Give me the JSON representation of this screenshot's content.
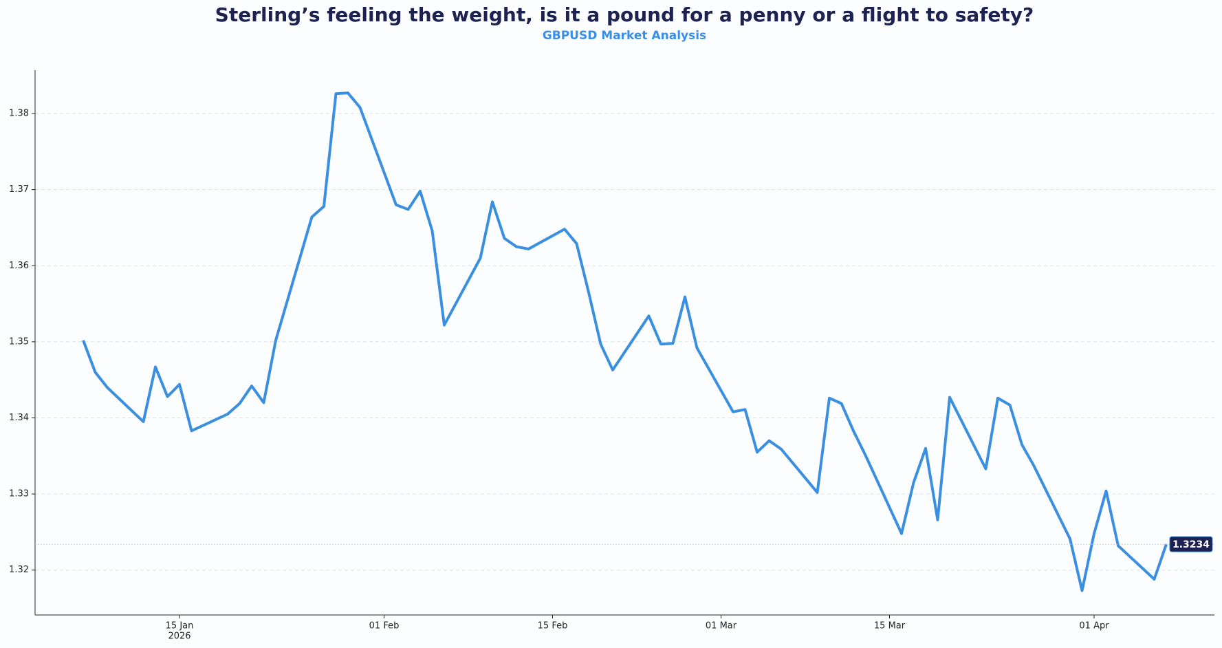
{
  "chart_data": {
    "type": "line",
    "title": "Sterling’s feeling the weight, is it a pound for a penny or a flight to safety?",
    "subtitle": "GBPUSD Market Analysis",
    "x": [
      "2026-01-07",
      "2026-01-08",
      "2026-01-09",
      "2026-01-12",
      "2026-01-13",
      "2026-01-14",
      "2026-01-15",
      "2026-01-16",
      "2026-01-19",
      "2026-01-20",
      "2026-01-21",
      "2026-01-22",
      "2026-01-23",
      "2026-01-26",
      "2026-01-27",
      "2026-01-28",
      "2026-01-29",
      "2026-01-30",
      "2026-02-02",
      "2026-02-03",
      "2026-02-04",
      "2026-02-05",
      "2026-02-06",
      "2026-02-09",
      "2026-02-10",
      "2026-02-11",
      "2026-02-12",
      "2026-02-13",
      "2026-02-16",
      "2026-02-17",
      "2026-02-18",
      "2026-02-19",
      "2026-02-20",
      "2026-02-23",
      "2026-02-24",
      "2026-02-25",
      "2026-02-26",
      "2026-02-27",
      "2026-03-02",
      "2026-03-03",
      "2026-03-04",
      "2026-03-05",
      "2026-03-06",
      "2026-03-09",
      "2026-03-10",
      "2026-03-11",
      "2026-03-12",
      "2026-03-13",
      "2026-03-16",
      "2026-03-17",
      "2026-03-18",
      "2026-03-19",
      "2026-03-20",
      "2026-03-23",
      "2026-03-24",
      "2026-03-25",
      "2026-03-26",
      "2026-03-27",
      "2026-03-30",
      "2026-03-31",
      "2026-04-01",
      "2026-04-02",
      "2026-04-03",
      "2026-04-06",
      "2026-04-07"
    ],
    "series": [
      {
        "name": "GBPUSD",
        "color": "#3a8fe0",
        "values": [
          1.3502,
          1.346,
          1.344,
          1.3395,
          1.3467,
          1.3428,
          1.3444,
          1.3383,
          1.3405,
          1.3419,
          1.3442,
          1.342,
          1.3502,
          1.3664,
          1.3678,
          1.3826,
          1.3827,
          1.3808,
          1.368,
          1.3674,
          1.3698,
          1.3646,
          1.3522,
          1.361,
          1.3684,
          1.3636,
          1.3625,
          1.3622,
          1.3648,
          1.3629,
          1.3565,
          1.3497,
          1.3463,
          1.3534,
          1.3497,
          1.3498,
          1.3559,
          1.3492,
          1.3408,
          1.3411,
          1.3355,
          1.337,
          1.3359,
          1.3302,
          1.3426,
          1.3419,
          1.3383,
          1.3351,
          1.3248,
          1.3315,
          1.336,
          1.3266,
          1.3427,
          1.3333,
          1.3426,
          1.3417,
          1.3365,
          1.3337,
          1.3241,
          1.3173,
          1.3248,
          1.3304,
          1.3232,
          1.3188,
          1.3234
        ]
      }
    ],
    "xlim": [
      "2026-01-03",
      "2026-04-11"
    ],
    "xticks": [
      {
        "value": "2026-01-15",
        "label": "15 Jan",
        "sublabel": "2026"
      },
      {
        "value": "2026-02-01",
        "label": "01 Feb"
      },
      {
        "value": "2026-02-15",
        "label": "15 Feb"
      },
      {
        "value": "2026-03-01",
        "label": "01 Mar"
      },
      {
        "value": "2026-03-15",
        "label": "15 Mar"
      },
      {
        "value": "2026-04-01",
        "label": "01 Apr"
      }
    ],
    "ylim": [
      1.3141,
      1.3857
    ],
    "yticks": [
      1.32,
      1.33,
      1.34,
      1.35,
      1.36,
      1.37,
      1.38
    ],
    "grid": true,
    "last_value_badge": true
  }
}
